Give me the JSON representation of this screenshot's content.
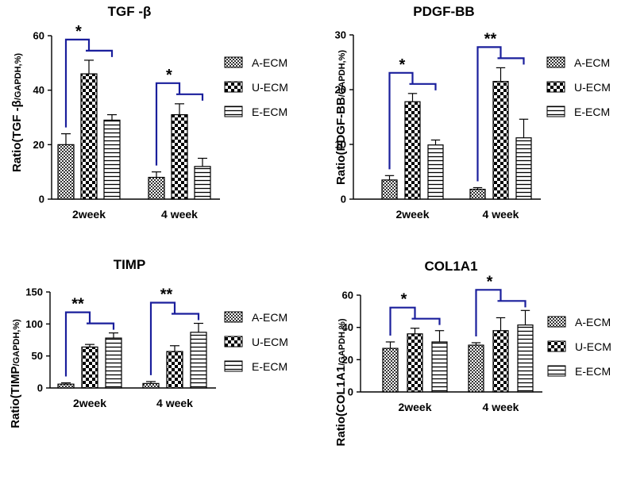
{
  "chart_data": [
    {
      "type": "bar",
      "title": "TGF -β",
      "ylabel_main": "Ratio(TGF -β",
      "ylabel_sub": "/GAPDH,%)",
      "categories": [
        "2week",
        "4 week"
      ],
      "series": [
        {
          "name": "A-ECM",
          "values": [
            20,
            8
          ],
          "errors": [
            4,
            2
          ]
        },
        {
          "name": "U-ECM",
          "values": [
            46,
            31
          ],
          "errors": [
            5,
            4
          ]
        },
        {
          "name": "E-ECM",
          "values": [
            29,
            12
          ],
          "errors": [
            2,
            3
          ]
        }
      ],
      "ylim": [
        0,
        60
      ],
      "yticks": [
        "0",
        "20",
        "40",
        "60"
      ],
      "significance": [
        {
          "category": 0,
          "from_series": 0,
          "to_series": 1,
          "star_offset": 0.05,
          "label": "*"
        },
        {
          "category": 1,
          "from_series": 0,
          "to_series": 1,
          "star_offset": 0.05,
          "label": "*"
        }
      ]
    },
    {
      "type": "bar",
      "title": "PDGF-BB",
      "ylabel_main": "Ratio(PDGF-BB",
      "ylabel_sub": "/GAPDH,%)",
      "categories": [
        "2week",
        "4 week"
      ],
      "series": [
        {
          "name": "A-ECM",
          "values": [
            3.5,
            1.8
          ],
          "errors": [
            0.8,
            0.3
          ]
        },
        {
          "name": "U-ECM",
          "values": [
            17.8,
            21.5
          ],
          "errors": [
            1.5,
            2.5
          ]
        },
        {
          "name": "E-ECM",
          "values": [
            9.9,
            11.2
          ],
          "errors": [
            0.9,
            3.4
          ]
        }
      ],
      "ylim": [
        0,
        30
      ],
      "yticks": [
        "0",
        "10",
        "20",
        "30"
      ],
      "significance": [
        {
          "category": 0,
          "from_series": 0,
          "to_series": 1,
          "star_offset": 0.05,
          "label": "*"
        },
        {
          "category": 1,
          "from_series": 0,
          "to_series": 1,
          "star_offset": 0.05,
          "label": "**"
        }
      ]
    },
    {
      "type": "bar",
      "title": "TIMP",
      "ylabel_main": "Ratio(TIMP",
      "ylabel_sub": "/GAPDH,%)",
      "categories": [
        "2week",
        "4 week"
      ],
      "series": [
        {
          "name": "A-ECM",
          "values": [
            6,
            7
          ],
          "errors": [
            2,
            3
          ]
        },
        {
          "name": "U-ECM",
          "values": [
            64,
            57
          ],
          "errors": [
            4,
            9
          ]
        },
        {
          "name": "E-ECM",
          "values": [
            78,
            87
          ],
          "errors": [
            8,
            14
          ]
        }
      ],
      "ylim": [
        0,
        150
      ],
      "yticks": [
        "0",
        "50",
        "100",
        "150"
      ],
      "significance": [
        {
          "category": 0,
          "from_series": 0,
          "to_series": 1,
          "star_offset": 0.0,
          "label": "**"
        },
        {
          "category": 1,
          "from_series": 0,
          "to_series": 1,
          "star_offset": 0.15,
          "label": "**"
        }
      ]
    },
    {
      "type": "bar",
      "title": "COL1A1",
      "ylabel_main": "Ratio(COL1A1",
      "ylabel_sub": "/GAPDH,%)",
      "categories": [
        "2week",
        "4 week"
      ],
      "series": [
        {
          "name": "A-ECM",
          "values": [
            27,
            29
          ],
          "errors": [
            4,
            1.5
          ]
        },
        {
          "name": "U-ECM",
          "values": [
            36,
            38
          ],
          "errors": [
            3.5,
            8
          ]
        },
        {
          "name": "E-ECM",
          "values": [
            31,
            41.5
          ],
          "errors": [
            7,
            9
          ]
        }
      ],
      "ylim": [
        0,
        60
      ],
      "yticks": [
        "0",
        "20",
        "40",
        "60"
      ],
      "significance": [
        {
          "category": 0,
          "from_series": 0,
          "to_series": 1,
          "star_offset": 0.05,
          "label": "*"
        },
        {
          "category": 1,
          "from_series": 0,
          "to_series": 1,
          "star_offset": 0.05,
          "label": "*"
        }
      ]
    }
  ],
  "colors": {
    "bracket": "#1a1f9c",
    "bar_stroke": "#000000"
  }
}
